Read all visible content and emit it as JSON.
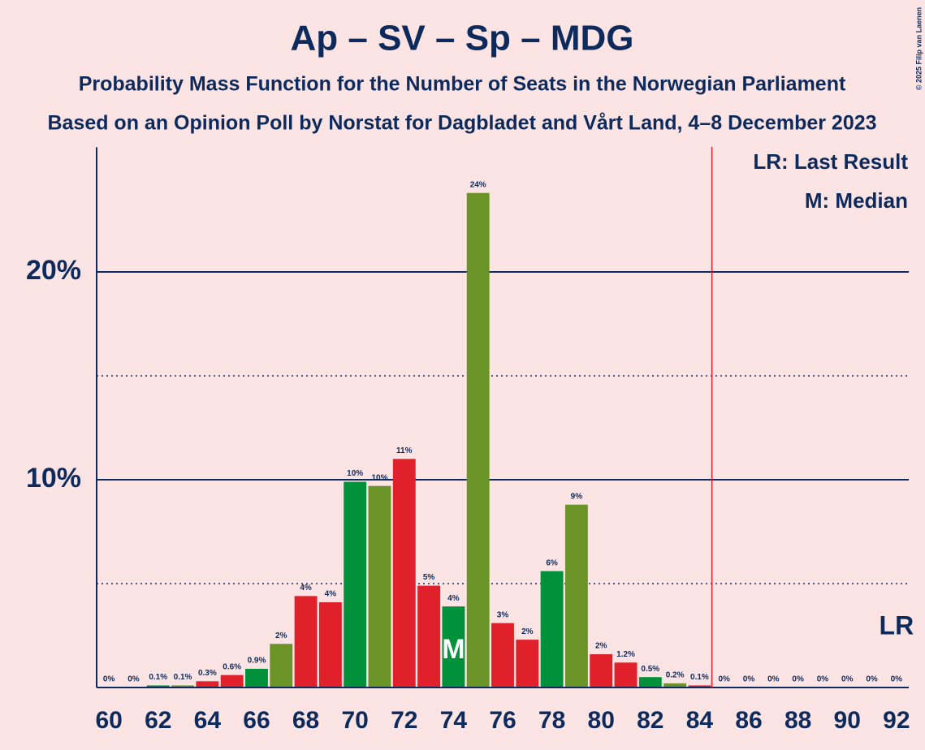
{
  "chart_data": {
    "type": "bar",
    "title": "Ap – SV – Sp – MDG",
    "subtitle": "Probability Mass Function for the Number of Seats in the Norwegian Parliament",
    "subtitle2": "Based on an Opinion Poll by Norstat for Dagbladet and Vårt Land, 4–8 December 2023",
    "copyright": "© 2025 Filip van Laenen",
    "legend": [
      "LR: Last Result",
      "M: Median"
    ],
    "x": [
      60,
      61,
      62,
      63,
      64,
      65,
      66,
      67,
      68,
      69,
      70,
      71,
      72,
      73,
      74,
      75,
      76,
      77,
      78,
      79,
      80,
      81,
      82,
      83,
      84,
      85,
      86,
      87,
      88,
      89,
      90,
      91,
      92
    ],
    "values": [
      0,
      0,
      0.1,
      0.1,
      0.3,
      0.6,
      0.9,
      2.1,
      4.4,
      4.1,
      9.9,
      9.7,
      11.0,
      4.9,
      3.9,
      23.8,
      3.1,
      2.3,
      5.6,
      8.8,
      1.6,
      1.2,
      0.5,
      0.2,
      0.1,
      0,
      0,
      0,
      0,
      0,
      0,
      0,
      0
    ],
    "value_labels": [
      "0%",
      "0%",
      "0.1%",
      "0.1%",
      "0.3%",
      "0.6%",
      "0.9%",
      "2%",
      "4%",
      "4%",
      "10%",
      "10%",
      "11%",
      "5%",
      "4%",
      "24%",
      "3%",
      "2%",
      "6%",
      "9%",
      "2%",
      "1.2%",
      "0.5%",
      "0.2%",
      "0.1%",
      "0%",
      "0%",
      "0%",
      "0%",
      "0%",
      "0%",
      "0%",
      "0%"
    ],
    "colors": [
      "#e0202a",
      "#e0202a",
      "#00913a",
      "#6b9428",
      "#e0202a",
      "#e0202a",
      "#00913a",
      "#6b9428",
      "#e0202a",
      "#e0202a",
      "#00913a",
      "#6b9428",
      "#e0202a",
      "#e0202a",
      "#00913a",
      "#6b9428",
      "#e0202a",
      "#e0202a",
      "#00913a",
      "#6b9428",
      "#e0202a",
      "#e0202a",
      "#00913a",
      "#6b9428",
      "#e0202a",
      "#e0202a",
      "#00913a",
      "#6b9428",
      "#e0202a",
      "#e0202a",
      "#00913a",
      "#6b9428",
      "#e0202a"
    ],
    "xlim": [
      59.5,
      92.5
    ],
    "xticks": [
      60,
      62,
      64,
      66,
      68,
      70,
      72,
      74,
      76,
      78,
      80,
      82,
      84,
      86,
      88,
      90,
      92
    ],
    "ylim": [
      0,
      26
    ],
    "yticks": [
      {
        "value": 10,
        "label": "10%"
      },
      {
        "value": 20,
        "label": "20%"
      }
    ],
    "minor_grid": [
      5,
      15
    ],
    "median": {
      "x": 74,
      "label": "M"
    },
    "last_result": {
      "x": 92,
      "label": "LR"
    },
    "majority_line": 84.5
  }
}
